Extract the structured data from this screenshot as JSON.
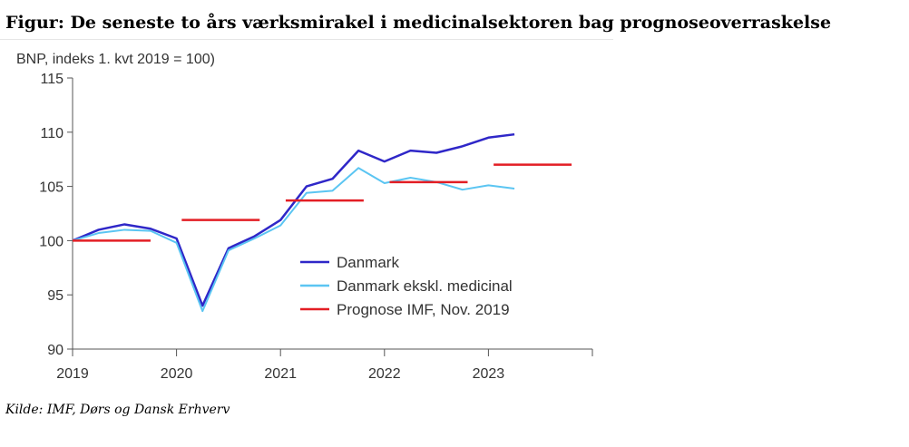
{
  "title": "Figur: De seneste to års værksmirakel i medicinalsektoren bag prognoseoverraskelse",
  "source": "Kilde: IMF, Dørs og Dansk Erhverv",
  "chart_data": {
    "type": "line",
    "ylabel": "BNP, indeks 1. kvt 2019 = 100)",
    "xlabel": "",
    "ylim": [
      90,
      115
    ],
    "yticks": [
      90,
      95,
      100,
      105,
      110,
      115
    ],
    "xlim": [
      2019.0,
      2024.0
    ],
    "xticks": [
      2019,
      2020,
      2021,
      2022,
      2023
    ],
    "xtick_labels": [
      "2019",
      "2020",
      "2021",
      "2022",
      "2023"
    ],
    "grid": false,
    "legend_position": "center-right",
    "series": [
      {
        "name": "Danmark",
        "color": "#2f27c8",
        "x": [
          2019.0,
          2019.25,
          2019.5,
          2019.75,
          2020.0,
          2020.25,
          2020.5,
          2020.75,
          2021.0,
          2021.25,
          2021.5,
          2021.75,
          2022.0,
          2022.25,
          2022.5,
          2022.75,
          2023.0,
          2023.25
        ],
        "values": [
          100.0,
          101.0,
          101.5,
          101.1,
          100.2,
          94.0,
          99.3,
          100.4,
          101.9,
          105.0,
          105.7,
          108.3,
          107.3,
          108.3,
          108.1,
          108.7,
          109.5,
          109.8
        ]
      },
      {
        "name": "Danmark ekskl. medicinal",
        "color": "#5bc5f2",
        "x": [
          2019.0,
          2019.25,
          2019.5,
          2019.75,
          2020.0,
          2020.25,
          2020.5,
          2020.75,
          2021.0,
          2021.25,
          2021.5,
          2021.75,
          2022.0,
          2022.25,
          2022.5,
          2022.75,
          2023.0,
          2023.25
        ],
        "values": [
          100.0,
          100.7,
          101.0,
          100.9,
          99.8,
          93.5,
          99.1,
          100.2,
          101.4,
          104.4,
          104.6,
          106.7,
          105.3,
          105.8,
          105.4,
          104.7,
          105.1,
          104.8
        ]
      },
      {
        "name": "Prognose IMF, Nov. 2019",
        "color": "#e31e24",
        "style": "step-segments",
        "segments": [
          {
            "x": [
              2019.0,
              2019.75
            ],
            "value": 100.0
          },
          {
            "x": [
              2020.05,
              2020.8
            ],
            "value": 101.9
          },
          {
            "x": [
              2021.05,
              2021.8
            ],
            "value": 103.7
          },
          {
            "x": [
              2022.05,
              2022.8
            ],
            "value": 105.4
          },
          {
            "x": [
              2023.05,
              2023.8
            ],
            "value": 107.0
          }
        ]
      }
    ]
  }
}
